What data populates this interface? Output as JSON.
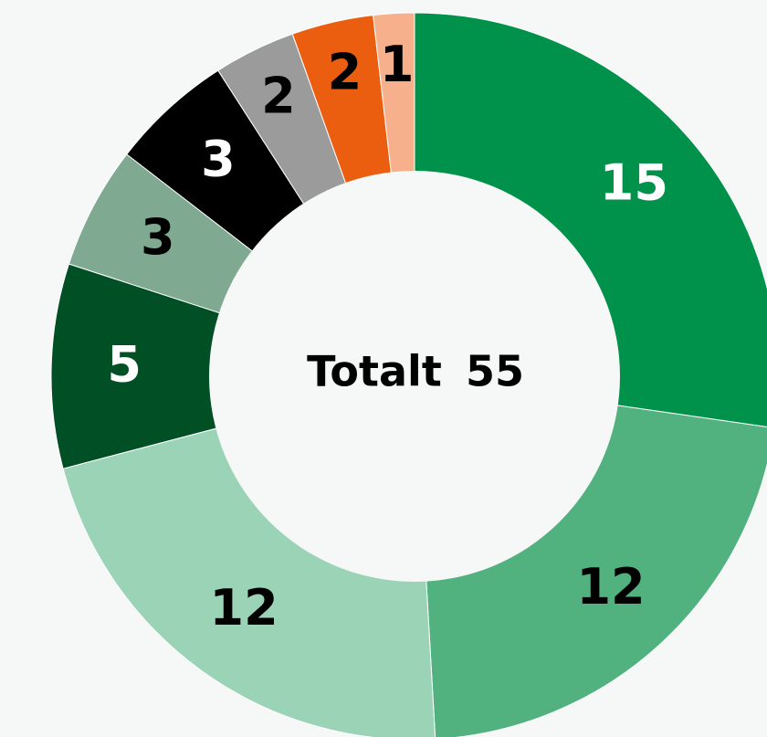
{
  "chart_data": {
    "type": "pie",
    "values": [
      15,
      12,
      12,
      5,
      3,
      3,
      2,
      2,
      1
    ],
    "colors": [
      "#00924a",
      "#52b27f",
      "#9ad3b6",
      "#004f25",
      "#7faa91",
      "#000000",
      "#9b9b9b",
      "#eb5e0f",
      "#f6b08c"
    ],
    "label_colors": [
      "#ffffff",
      "#000000",
      "#000000",
      "#ffffff",
      "#000000",
      "#ffffff",
      "#000000",
      "#000000",
      "#000000"
    ],
    "center_label": "Totalt",
    "total": 55
  }
}
